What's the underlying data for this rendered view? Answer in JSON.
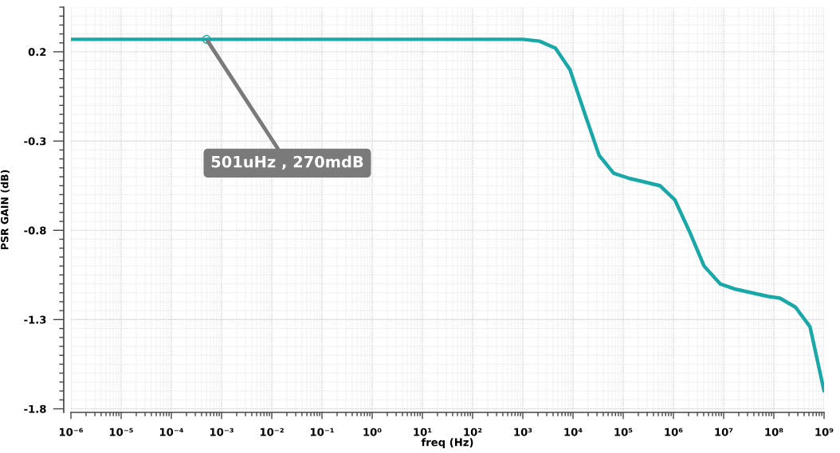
{
  "chart_data": {
    "type": "line",
    "xlabel": "freq (Hz)",
    "ylabel": "PSR GAIN (dB)",
    "log": "x",
    "grid": true,
    "x": [
      1e-06,
      0.000501,
      1000,
      2140,
      4470,
      8710,
      17800,
      33100,
      64600,
      135000,
      275000,
      537000,
      1070000,
      2190000,
      4070000,
      8510000,
      17400000,
      36300000,
      75900000,
      132000000,
      269000000,
      525000000,
      1000000000
    ],
    "series": [
      {
        "color": "#18a8a8",
        "values": [
          0.27,
          0.27,
          0.27,
          0.26,
          0.22,
          0.1,
          -0.16,
          -0.38,
          -0.48,
          -0.51,
          -0.53,
          -0.55,
          -0.63,
          -0.82,
          -1.0,
          -1.1,
          -1.13,
          -1.15,
          -1.17,
          -1.18,
          -1.23,
          -1.34,
          -1.7
        ]
      }
    ],
    "xlim": [
      1e-06,
      1000000000
    ],
    "xticks": [
      {
        "value": 1e-06,
        "label": "10⁻⁶"
      },
      {
        "value": 1e-05,
        "label": "10⁻⁵"
      },
      {
        "value": 0.0001,
        "label": "10⁻⁴"
      },
      {
        "value": 0.001,
        "label": "10⁻³"
      },
      {
        "value": 0.01,
        "label": "10⁻²"
      },
      {
        "value": 0.1,
        "label": "10⁻¹"
      },
      {
        "value": 1,
        "label": "10⁰"
      },
      {
        "value": 10,
        "label": "10¹"
      },
      {
        "value": 100,
        "label": "10²"
      },
      {
        "value": 1000,
        "label": "10³"
      },
      {
        "value": 10000,
        "label": "10⁴"
      },
      {
        "value": 100000,
        "label": "10⁵"
      },
      {
        "value": 1000000,
        "label": "10⁶"
      },
      {
        "value": 10000000,
        "label": "10⁷"
      },
      {
        "value": 100000000,
        "label": "10⁸"
      },
      {
        "value": 1000000000,
        "label": "10⁹"
      }
    ],
    "ylim": [
      -1.82,
      0.45
    ],
    "yticks": [
      -1.8,
      -1.3,
      -0.8,
      -0.3,
      0.2
    ],
    "annotations": [
      {
        "text": "501uHz , 270mdB",
        "x": 0.000501,
        "y": 0.27
      }
    ]
  }
}
